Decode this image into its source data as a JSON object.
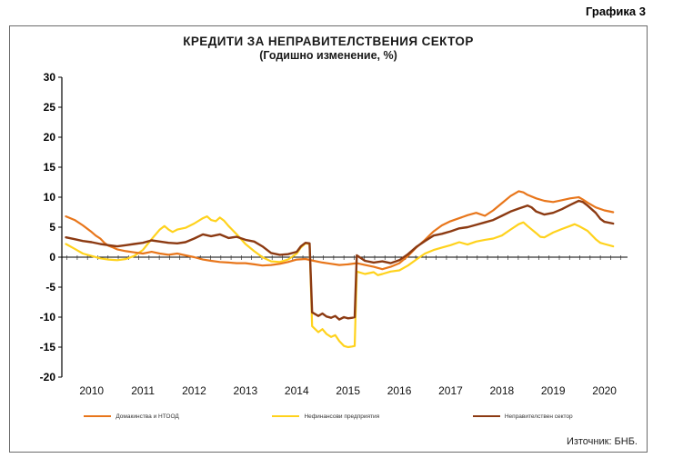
{
  "page": {
    "caption": "Графика 3"
  },
  "chart": {
    "title_line1": "КРЕДИТИ ЗА НЕПРАВИТЕЛСТВЕНИЯ СЕКТОР",
    "title_line2": "(Годишно изменение, %)",
    "source": "Източник: БНБ."
  },
  "chart_data": {
    "type": "line",
    "title": "КРЕДИТИ ЗА НЕПРАВИТЕЛСТВЕНИЯ СЕКТОР",
    "subtitle": "(Годишно изменение, %)",
    "xlim": [
      2009.42,
      2020.45
    ],
    "ylim": [
      -20,
      30
    ],
    "ytick_step": 5,
    "yticks": [
      30,
      25,
      20,
      15,
      10,
      5,
      0,
      -5,
      -10,
      -15,
      -20
    ],
    "xticks": [
      2010,
      2011,
      2012,
      2013,
      2014,
      2015,
      2016,
      2017,
      2018,
      2019,
      2020
    ],
    "grid": false,
    "legend_position": "bottom",
    "series": [
      {
        "name": "Домакинства и НТООД",
        "color": "#E8761B",
        "width": 2.2,
        "z": 2,
        "points": [
          [
            2009.5,
            6.8
          ],
          [
            2009.67,
            6.2
          ],
          [
            2009.83,
            5.3
          ],
          [
            2010.0,
            4.2
          ],
          [
            2010.08,
            3.6
          ],
          [
            2010.17,
            3.1
          ],
          [
            2010.25,
            2.4
          ],
          [
            2010.33,
            1.9
          ],
          [
            2010.42,
            1.6
          ],
          [
            2010.5,
            1.3
          ],
          [
            2010.67,
            1.0
          ],
          [
            2010.83,
            0.8
          ],
          [
            2011.0,
            0.6
          ],
          [
            2011.17,
            0.9
          ],
          [
            2011.33,
            0.6
          ],
          [
            2011.5,
            0.4
          ],
          [
            2011.67,
            0.6
          ],
          [
            2011.83,
            0.3
          ],
          [
            2012.0,
            0.0
          ],
          [
            2012.17,
            -0.4
          ],
          [
            2012.33,
            -0.6
          ],
          [
            2012.5,
            -0.8
          ],
          [
            2012.67,
            -0.9
          ],
          [
            2012.83,
            -1.0
          ],
          [
            2013.0,
            -1.0
          ],
          [
            2013.17,
            -1.2
          ],
          [
            2013.33,
            -1.4
          ],
          [
            2013.5,
            -1.3
          ],
          [
            2013.67,
            -1.1
          ],
          [
            2013.83,
            -0.8
          ],
          [
            2014.0,
            -0.4
          ],
          [
            2014.17,
            -0.3
          ],
          [
            2014.33,
            -0.6
          ],
          [
            2014.5,
            -0.9
          ],
          [
            2014.67,
            -1.1
          ],
          [
            2014.83,
            -1.3
          ],
          [
            2015.0,
            -1.2
          ],
          [
            2015.17,
            -1.0
          ],
          [
            2015.33,
            -1.3
          ],
          [
            2015.5,
            -1.6
          ],
          [
            2015.67,
            -2.0
          ],
          [
            2015.83,
            -1.6
          ],
          [
            2016.0,
            -1.0
          ],
          [
            2016.17,
            0.2
          ],
          [
            2016.33,
            1.6
          ],
          [
            2016.5,
            2.9
          ],
          [
            2016.67,
            4.3
          ],
          [
            2016.83,
            5.3
          ],
          [
            2017.0,
            6.0
          ],
          [
            2017.17,
            6.5
          ],
          [
            2017.33,
            7.0
          ],
          [
            2017.5,
            7.4
          ],
          [
            2017.67,
            6.9
          ],
          [
            2017.83,
            7.8
          ],
          [
            2018.0,
            9.0
          ],
          [
            2018.17,
            10.2
          ],
          [
            2018.33,
            11.0
          ],
          [
            2018.42,
            10.8
          ],
          [
            2018.5,
            10.4
          ],
          [
            2018.67,
            9.8
          ],
          [
            2018.83,
            9.4
          ],
          [
            2019.0,
            9.2
          ],
          [
            2019.17,
            9.5
          ],
          [
            2019.33,
            9.8
          ],
          [
            2019.5,
            10.0
          ],
          [
            2019.58,
            9.6
          ],
          [
            2019.67,
            9.1
          ],
          [
            2019.83,
            8.3
          ],
          [
            2020.0,
            7.8
          ],
          [
            2020.17,
            7.5
          ]
        ]
      },
      {
        "name": "Нефинансови предприятия",
        "color": "#FFD21C",
        "width": 2.2,
        "z": 1,
        "points": [
          [
            2009.5,
            2.2
          ],
          [
            2009.67,
            1.4
          ],
          [
            2009.83,
            0.6
          ],
          [
            2010.0,
            0.2
          ],
          [
            2010.17,
            -0.2
          ],
          [
            2010.33,
            -0.4
          ],
          [
            2010.5,
            -0.5
          ],
          [
            2010.67,
            -0.3
          ],
          [
            2010.83,
            0.2
          ],
          [
            2011.0,
            1.2
          ],
          [
            2011.17,
            3.0
          ],
          [
            2011.33,
            4.6
          ],
          [
            2011.42,
            5.2
          ],
          [
            2011.5,
            4.6
          ],
          [
            2011.58,
            4.2
          ],
          [
            2011.67,
            4.6
          ],
          [
            2011.83,
            4.9
          ],
          [
            2012.0,
            5.6
          ],
          [
            2012.17,
            6.5
          ],
          [
            2012.25,
            6.8
          ],
          [
            2012.33,
            6.2
          ],
          [
            2012.42,
            6.0
          ],
          [
            2012.5,
            6.6
          ],
          [
            2012.58,
            6.1
          ],
          [
            2012.67,
            5.2
          ],
          [
            2012.83,
            3.8
          ],
          [
            2013.0,
            2.2
          ],
          [
            2013.17,
            1.0
          ],
          [
            2013.33,
            0.0
          ],
          [
            2013.5,
            -0.7
          ],
          [
            2013.67,
            -0.8
          ],
          [
            2013.83,
            -0.4
          ],
          [
            2014.0,
            0.6
          ],
          [
            2014.08,
            1.6
          ],
          [
            2014.17,
            2.3
          ],
          [
            2014.25,
            2.2
          ],
          [
            2014.3,
            -11.5
          ],
          [
            2014.42,
            -12.5
          ],
          [
            2014.5,
            -12.0
          ],
          [
            2014.58,
            -12.8
          ],
          [
            2014.67,
            -13.3
          ],
          [
            2014.75,
            -13.0
          ],
          [
            2014.83,
            -14.0
          ],
          [
            2014.92,
            -14.8
          ],
          [
            2015.0,
            -15.0
          ],
          [
            2015.08,
            -14.9
          ],
          [
            2015.13,
            -14.8
          ],
          [
            2015.17,
            -2.4
          ],
          [
            2015.33,
            -2.8
          ],
          [
            2015.5,
            -2.5
          ],
          [
            2015.58,
            -3.0
          ],
          [
            2015.67,
            -2.8
          ],
          [
            2015.83,
            -2.4
          ],
          [
            2016.0,
            -2.2
          ],
          [
            2016.17,
            -1.4
          ],
          [
            2016.33,
            -0.4
          ],
          [
            2016.5,
            0.6
          ],
          [
            2016.67,
            1.2
          ],
          [
            2016.83,
            1.6
          ],
          [
            2017.0,
            2.0
          ],
          [
            2017.17,
            2.5
          ],
          [
            2017.33,
            2.1
          ],
          [
            2017.5,
            2.6
          ],
          [
            2017.67,
            2.9
          ],
          [
            2017.83,
            3.1
          ],
          [
            2018.0,
            3.6
          ],
          [
            2018.17,
            4.6
          ],
          [
            2018.33,
            5.5
          ],
          [
            2018.42,
            5.8
          ],
          [
            2018.5,
            5.2
          ],
          [
            2018.67,
            4.0
          ],
          [
            2018.75,
            3.4
          ],
          [
            2018.83,
            3.3
          ],
          [
            2019.0,
            4.1
          ],
          [
            2019.17,
            4.7
          ],
          [
            2019.33,
            5.2
          ],
          [
            2019.42,
            5.5
          ],
          [
            2019.5,
            5.2
          ],
          [
            2019.67,
            4.4
          ],
          [
            2019.83,
            3.0
          ],
          [
            2019.92,
            2.4
          ],
          [
            2020.0,
            2.2
          ],
          [
            2020.17,
            1.8
          ]
        ]
      },
      {
        "name": "Неправителствен сектор",
        "color": "#8C3A12",
        "width": 2.4,
        "z": 3,
        "points": [
          [
            2009.5,
            3.3
          ],
          [
            2009.67,
            3.0
          ],
          [
            2009.83,
            2.7
          ],
          [
            2010.0,
            2.5
          ],
          [
            2010.17,
            2.2
          ],
          [
            2010.33,
            2.0
          ],
          [
            2010.5,
            1.8
          ],
          [
            2010.67,
            2.0
          ],
          [
            2010.83,
            2.2
          ],
          [
            2011.0,
            2.4
          ],
          [
            2011.17,
            2.8
          ],
          [
            2011.33,
            2.6
          ],
          [
            2011.5,
            2.4
          ],
          [
            2011.67,
            2.3
          ],
          [
            2011.83,
            2.5
          ],
          [
            2012.0,
            3.1
          ],
          [
            2012.17,
            3.8
          ],
          [
            2012.33,
            3.5
          ],
          [
            2012.5,
            3.8
          ],
          [
            2012.67,
            3.2
          ],
          [
            2012.83,
            3.4
          ],
          [
            2013.0,
            2.9
          ],
          [
            2013.17,
            2.6
          ],
          [
            2013.33,
            1.8
          ],
          [
            2013.5,
            0.7
          ],
          [
            2013.67,
            0.4
          ],
          [
            2013.83,
            0.5
          ],
          [
            2014.0,
            0.9
          ],
          [
            2014.08,
            1.8
          ],
          [
            2014.17,
            2.4
          ],
          [
            2014.25,
            2.3
          ],
          [
            2014.3,
            -9.2
          ],
          [
            2014.42,
            -9.8
          ],
          [
            2014.5,
            -9.4
          ],
          [
            2014.58,
            -9.9
          ],
          [
            2014.67,
            -10.1
          ],
          [
            2014.75,
            -9.8
          ],
          [
            2014.83,
            -10.4
          ],
          [
            2014.92,
            -10.0
          ],
          [
            2015.0,
            -10.2
          ],
          [
            2015.08,
            -10.1
          ],
          [
            2015.13,
            -10.0
          ],
          [
            2015.17,
            0.3
          ],
          [
            2015.33,
            -0.6
          ],
          [
            2015.5,
            -0.9
          ],
          [
            2015.67,
            -0.7
          ],
          [
            2015.83,
            -1.0
          ],
          [
            2016.0,
            -0.5
          ],
          [
            2016.17,
            0.5
          ],
          [
            2016.33,
            1.7
          ],
          [
            2016.5,
            2.7
          ],
          [
            2016.67,
            3.6
          ],
          [
            2016.83,
            3.9
          ],
          [
            2017.0,
            4.3
          ],
          [
            2017.17,
            4.8
          ],
          [
            2017.33,
            5.0
          ],
          [
            2017.5,
            5.4
          ],
          [
            2017.67,
            5.8
          ],
          [
            2017.83,
            6.2
          ],
          [
            2018.0,
            6.9
          ],
          [
            2018.17,
            7.6
          ],
          [
            2018.33,
            8.1
          ],
          [
            2018.5,
            8.6
          ],
          [
            2018.58,
            8.3
          ],
          [
            2018.67,
            7.6
          ],
          [
            2018.83,
            7.1
          ],
          [
            2019.0,
            7.4
          ],
          [
            2019.17,
            8.0
          ],
          [
            2019.33,
            8.7
          ],
          [
            2019.5,
            9.4
          ],
          [
            2019.58,
            9.2
          ],
          [
            2019.67,
            8.6
          ],
          [
            2019.83,
            7.4
          ],
          [
            2019.92,
            6.4
          ],
          [
            2020.0,
            5.9
          ],
          [
            2020.17,
            5.6
          ]
        ]
      }
    ]
  }
}
